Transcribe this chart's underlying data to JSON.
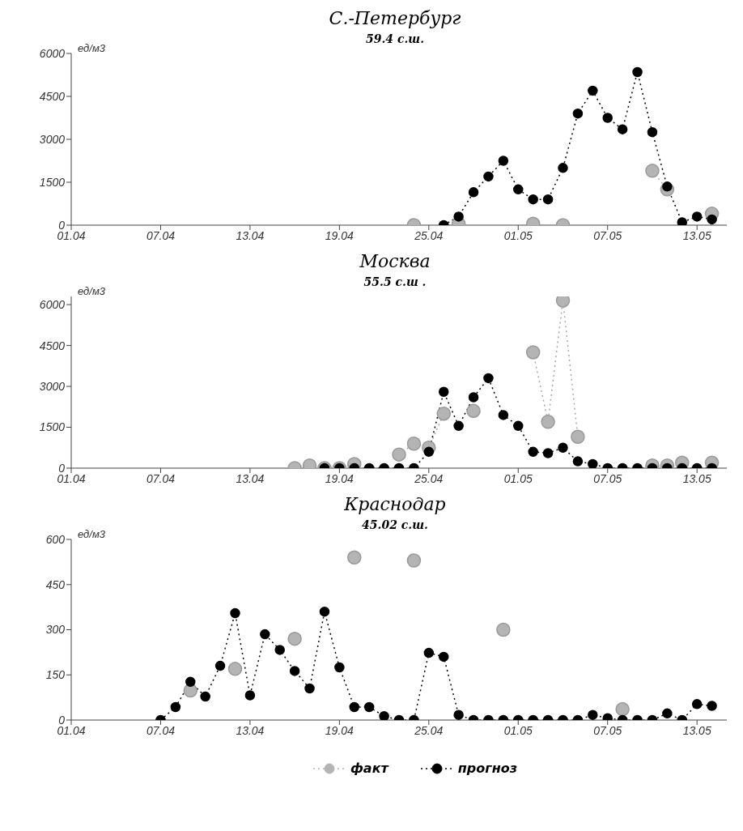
{
  "chart_data": [
    {
      "type": "line",
      "title": "С.-Петербург",
      "subtitle": "59.4 с.ш.",
      "ylabel": "ед/м3",
      "marker": "circle",
      "line_style": "dotted",
      "legend": false,
      "x": [
        "--04-24",
        "--04-25",
        "--04-26",
        "--04-27",
        "--04-28",
        "--04-29",
        "--04-30",
        "--05-01",
        "--05-02",
        "--05-03",
        "--05-04",
        "--05-05",
        "--05-06",
        "--05-07",
        "--05-08",
        "--05-09",
        "--05-10",
        "--05-11",
        "--05-12",
        "--05-13",
        "--05-14"
      ],
      "series": [
        {
          "color": "#b4b4b4",
          "values": [
            0,
            null,
            null,
            50,
            null,
            null,
            null,
            null,
            50,
            null,
            0,
            null,
            null,
            null,
            null,
            null,
            1900,
            1250,
            null,
            null,
            400
          ]
        },
        {
          "color": "#000000",
          "values": [
            null,
            null,
            0,
            300,
            1150,
            1700,
            2250,
            1250,
            900,
            900,
            2000,
            3900,
            4700,
            3750,
            3350,
            5350,
            3250,
            1350,
            100,
            300,
            200
          ]
        }
      ],
      "xlim": [
        "--04-01",
        "--05-15"
      ],
      "xticks": [
        {
          "value": "--04-01",
          "label": "01.04"
        },
        {
          "value": "--04-07",
          "label": "07.04"
        },
        {
          "value": "--04-13",
          "label": "13.04"
        },
        {
          "value": "--04-19",
          "label": "19.04"
        },
        {
          "value": "--04-25",
          "label": "25.04"
        },
        {
          "value": "--05-01",
          "label": "01.05"
        },
        {
          "value": "--05-07",
          "label": "07.05"
        },
        {
          "value": "--05-13",
          "label": "13.05"
        }
      ],
      "ylim": [
        0,
        6000
      ],
      "yticks": [
        0,
        1500,
        3000,
        4500,
        6000
      ]
    },
    {
      "type": "line",
      "title": "Москва",
      "subtitle": "55.5 с.ш .",
      "ylabel": "ед/м3",
      "marker": "circle",
      "line_style": "dotted",
      "legend": false,
      "x": [
        "--04-16",
        "--04-17",
        "--04-18",
        "--04-19",
        "--04-20",
        "--04-21",
        "--04-22",
        "--04-23",
        "--04-24",
        "--04-25",
        "--04-26",
        "--04-27",
        "--04-28",
        "--04-29",
        "--04-30",
        "--05-01",
        "--05-02",
        "--05-03",
        "--05-04",
        "--05-05",
        "--05-06",
        "--05-07",
        "--05-08",
        "--05-09",
        "--05-10",
        "--05-11",
        "--05-12",
        "--05-13",
        "--05-14"
      ],
      "series": [
        {
          "color": "#b4b4b4",
          "values": [
            0,
            100,
            0,
            0,
            150,
            null,
            null,
            500,
            900,
            750,
            2000,
            null,
            2100,
            null,
            null,
            null,
            4250,
            1700,
            6150,
            1150,
            null,
            null,
            null,
            null,
            100,
            100,
            200,
            null,
            200
          ]
        },
        {
          "color": "#000000",
          "values": [
            null,
            null,
            0,
            0,
            0,
            0,
            0,
            0,
            0,
            600,
            2800,
            1550,
            2600,
            3300,
            1950,
            1550,
            600,
            550,
            750,
            250,
            150,
            0,
            0,
            0,
            0,
            0,
            0,
            0,
            0
          ]
        }
      ],
      "xlim": [
        "--04-01",
        "--05-15"
      ],
      "xticks": [
        {
          "value": "--04-01",
          "label": "01.04"
        },
        {
          "value": "--04-07",
          "label": "07.04"
        },
        {
          "value": "--04-13",
          "label": "13.04"
        },
        {
          "value": "--04-19",
          "label": "19.04"
        },
        {
          "value": "--04-25",
          "label": "25.04"
        },
        {
          "value": "--05-01",
          "label": "01.05"
        },
        {
          "value": "--05-07",
          "label": "07.05"
        },
        {
          "value": "--05-13",
          "label": "13.05"
        }
      ],
      "ylim": [
        0,
        6300
      ],
      "yticks": [
        0,
        1500,
        3000,
        4500,
        6000
      ]
    },
    {
      "type": "line",
      "title": "Краснодар",
      "subtitle": "45.02 с.ш.",
      "ylabel": "ед/м3",
      "marker": "circle",
      "line_style": "dotted",
      "legend": "bottom",
      "x": [
        "--04-07",
        "--04-08",
        "--04-09",
        "--04-10",
        "--04-11",
        "--04-12",
        "--04-13",
        "--04-14",
        "--04-15",
        "--04-16",
        "--04-17",
        "--04-18",
        "--04-19",
        "--04-20",
        "--04-21",
        "--04-22",
        "--04-23",
        "--04-24",
        "--04-25",
        "--04-26",
        "--04-27",
        "--04-28",
        "--04-29",
        "--04-30",
        "--05-01",
        "--05-02",
        "--05-03",
        "--05-04",
        "--05-05",
        "--05-06",
        "--05-07",
        "--05-08",
        "--05-09",
        "--05-10",
        "--05-11",
        "--05-12",
        "--05-13",
        "--05-14"
      ],
      "series": [
        {
          "name": "факт",
          "type": "scatter",
          "color": "#b4b4b4",
          "values": [
            null,
            null,
            98,
            null,
            null,
            170,
            null,
            null,
            null,
            270,
            null,
            null,
            null,
            540,
            null,
            null,
            null,
            530,
            null,
            null,
            null,
            null,
            null,
            300,
            null,
            null,
            null,
            null,
            null,
            null,
            null,
            36,
            null,
            null,
            null,
            null,
            null,
            null
          ]
        },
        {
          "name": "прогноз",
          "color": "#000000",
          "values": [
            0,
            43,
            127,
            78,
            180,
            355,
            82,
            285,
            233,
            163,
            105,
            360,
            175,
            43,
            43,
            13,
            0,
            0,
            223,
            210,
            17,
            0,
            0,
            0,
            0,
            0,
            0,
            0,
            0,
            17,
            6,
            0,
            0,
            0,
            22,
            0,
            53,
            47
          ]
        }
      ],
      "xlim": [
        "--04-01",
        "--05-15"
      ],
      "xticks": [
        {
          "value": "--04-01",
          "label": "01.04"
        },
        {
          "value": "--04-07",
          "label": "07.04"
        },
        {
          "value": "--04-13",
          "label": "13.04"
        },
        {
          "value": "--04-19",
          "label": "19.04"
        },
        {
          "value": "--04-25",
          "label": "25.04"
        },
        {
          "value": "--05-01",
          "label": "01.05"
        },
        {
          "value": "--05-07",
          "label": "07.05"
        },
        {
          "value": "--05-13",
          "label": "13.05"
        }
      ],
      "ylim": [
        0,
        600
      ],
      "yticks": [
        0,
        150,
        300,
        450,
        600
      ]
    }
  ]
}
